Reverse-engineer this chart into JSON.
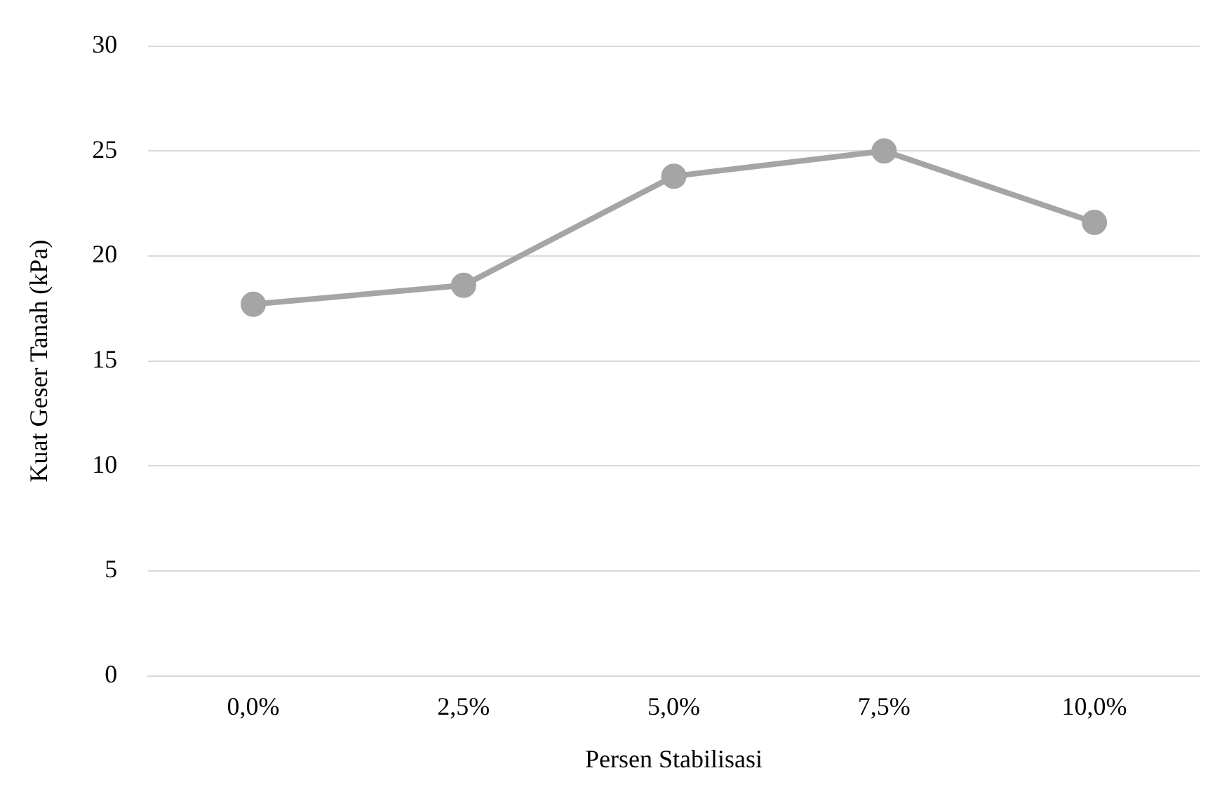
{
  "chart_data": {
    "type": "line",
    "xlabel": "Persen Stabilisasi",
    "ylabel": "Kuat Geser Tanah (kPa)",
    "categories": [
      "0,0%",
      "2,5%",
      "5,0%",
      "7,5%",
      "10,0%"
    ],
    "series": [
      {
        "color": "#a5a5a5",
        "values": [
          17.7,
          18.6,
          23.8,
          25.0,
          21.6
        ]
      }
    ],
    "ylim": [
      0,
      30
    ],
    "yticks": [
      0,
      5,
      10,
      15,
      20,
      25,
      30
    ],
    "grid": "y",
    "legend": false,
    "marker": "circle",
    "line_style": "solid"
  }
}
